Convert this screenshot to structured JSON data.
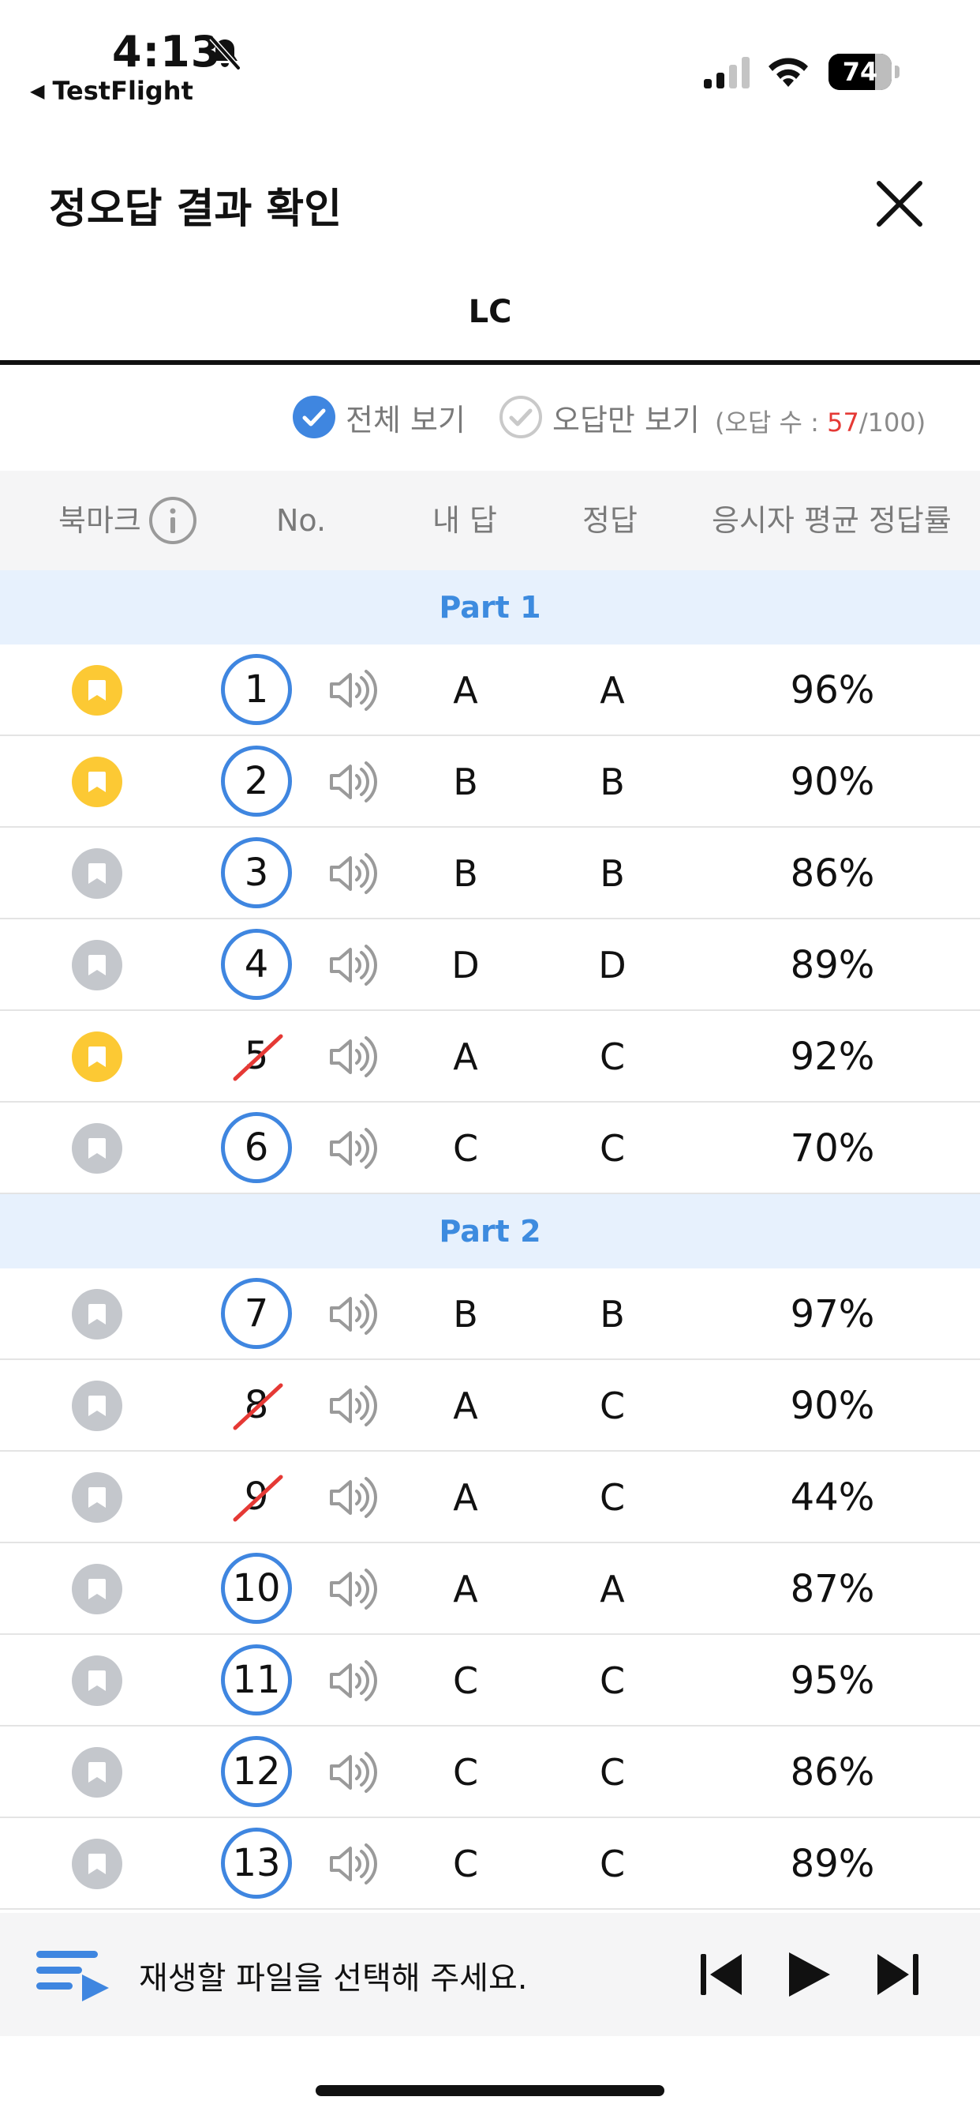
{
  "status_bar": {
    "time": "4:13",
    "back_app": "TestFlight",
    "battery_level": "74",
    "battery_fraction": 0.74
  },
  "header": {
    "title": "정오답 결과 확인"
  },
  "tabs": [
    {
      "label": "LC",
      "selected": true
    }
  ],
  "filters": {
    "all_label": "전체 보기",
    "all_selected": true,
    "wrong_only_label": "오답만 보기",
    "wrong_only_selected": false,
    "wrong_count_prefix": "(오답 수 : ",
    "wrong_count": "57",
    "wrong_count_suffix": "/100)"
  },
  "table": {
    "columns": {
      "bookmark": "북마크",
      "no": "No.",
      "my_answer": "내 답",
      "answer": "정답",
      "avg_rate": "응시자 평균 정답률"
    },
    "parts": [
      {
        "label": "Part 1",
        "rows": [
          {
            "no": "1",
            "bookmarked": true,
            "correct": true,
            "my_answer": "A",
            "answer": "A",
            "rate": "96%"
          },
          {
            "no": "2",
            "bookmarked": true,
            "correct": true,
            "my_answer": "B",
            "answer": "B",
            "rate": "90%"
          },
          {
            "no": "3",
            "bookmarked": false,
            "correct": true,
            "my_answer": "B",
            "answer": "B",
            "rate": "86%"
          },
          {
            "no": "4",
            "bookmarked": false,
            "correct": true,
            "my_answer": "D",
            "answer": "D",
            "rate": "89%"
          },
          {
            "no": "5",
            "bookmarked": true,
            "correct": false,
            "my_answer": "A",
            "answer": "C",
            "rate": "92%"
          },
          {
            "no": "6",
            "bookmarked": false,
            "correct": true,
            "my_answer": "C",
            "answer": "C",
            "rate": "70%"
          }
        ]
      },
      {
        "label": "Part 2",
        "rows": [
          {
            "no": "7",
            "bookmarked": false,
            "correct": true,
            "my_answer": "B",
            "answer": "B",
            "rate": "97%"
          },
          {
            "no": "8",
            "bookmarked": false,
            "correct": false,
            "my_answer": "A",
            "answer": "C",
            "rate": "90%"
          },
          {
            "no": "9",
            "bookmarked": false,
            "correct": false,
            "my_answer": "A",
            "answer": "C",
            "rate": "44%"
          },
          {
            "no": "10",
            "bookmarked": false,
            "correct": true,
            "my_answer": "A",
            "answer": "A",
            "rate": "87%"
          },
          {
            "no": "11",
            "bookmarked": false,
            "correct": true,
            "my_answer": "C",
            "answer": "C",
            "rate": "95%"
          },
          {
            "no": "12",
            "bookmarked": false,
            "correct": true,
            "my_answer": "C",
            "answer": "C",
            "rate": "86%"
          },
          {
            "no": "13",
            "bookmarked": false,
            "correct": true,
            "my_answer": "C",
            "answer": "C",
            "rate": "89%"
          }
        ]
      }
    ]
  },
  "player": {
    "label": "재생할 파일을 선택해 주세요."
  },
  "colors": {
    "accent_blue": "#3f86e0",
    "part_band": "#e7f1fd",
    "part_text": "#3d8bdf",
    "bookmark_on": "#fcc934",
    "bookmark_off": "#c4c7cc",
    "wrong_red": "#e53935"
  },
  "icons": {
    "bell": "bell-slash-icon",
    "close": "close-icon",
    "info": "info-icon",
    "bookmark": "bookmark-icon",
    "speaker": "speaker-icon",
    "playlist": "playlist-icon",
    "prev": "skip-previous-icon",
    "play": "play-icon",
    "next": "skip-next-icon"
  }
}
